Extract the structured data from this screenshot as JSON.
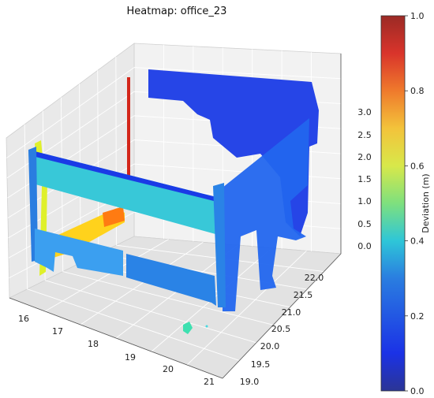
{
  "chart_data": {
    "type": "scatter",
    "projection": "3d",
    "title": "Heatmap: office_23",
    "xlabel": "",
    "ylabel": "",
    "zlabel": "",
    "x_ticks": [
      "16",
      "17",
      "18",
      "19",
      "20",
      "21"
    ],
    "y_ticks": [
      "19.0",
      "19.5",
      "20.0",
      "20.5",
      "21.0",
      "21.5",
      "22.0"
    ],
    "z_ticks": [
      "0.0",
      "0.5",
      "1.0",
      "1.5",
      "2.0",
      "2.5",
      "3.0"
    ],
    "xlim": [
      15.7,
      21.1
    ],
    "ylim": [
      18.9,
      22.4
    ],
    "zlim": [
      -0.1,
      3.3
    ],
    "grid": true,
    "colormap": "jet",
    "colorbar": {
      "label": "Deviation (m)",
      "range": [
        0.0,
        1.0
      ],
      "ticks": [
        "0.0",
        "0.2",
        "0.4",
        "0.6",
        "0.8",
        "1.0"
      ]
    },
    "point_groups": [
      {
        "x": [
          17.0,
          20.6
        ],
        "y": [
          19.2,
          19.2
        ],
        "z": [
          1.0,
          2.0
        ],
        "deviation": 0.35
      },
      {
        "x": [
          17.0,
          20.3
        ],
        "y": [
          19.2,
          19.2
        ],
        "z": [
          -0.1,
          0.4
        ],
        "deviation": 0.25
      },
      {
        "x": [
          20.6,
          20.6
        ],
        "y": [
          19.2,
          22.3
        ],
        "z": [
          -0.1,
          2.8
        ],
        "deviation": 0.2
      },
      {
        "x": [
          17.6,
          20.6
        ],
        "y": [
          22.3,
          22.3
        ],
        "z": [
          1.5,
          3.2
        ],
        "deviation": 0.1
      },
      {
        "x": [
          17.0,
          17.0
        ],
        "y": [
          19.2,
          20.9
        ],
        "z": [
          -0.1,
          2.2
        ],
        "deviation": 0.55
      },
      {
        "x": [
          17.3,
          18.5
        ],
        "y": [
          20.8,
          20.8
        ],
        "z": [
          0.0,
          0.9
        ],
        "deviation": 0.7
      },
      {
        "x": [
          18.5,
          18.5
        ],
        "y": [
          20.8,
          20.8
        ],
        "z": [
          0.4,
          3.0
        ],
        "deviation": 0.95
      },
      {
        "x": [
          19.6,
          19.7
        ],
        "y": [
          18.6,
          18.7
        ],
        "z": [
          0.0,
          0.1
        ],
        "deviation": 0.35
      }
    ]
  }
}
